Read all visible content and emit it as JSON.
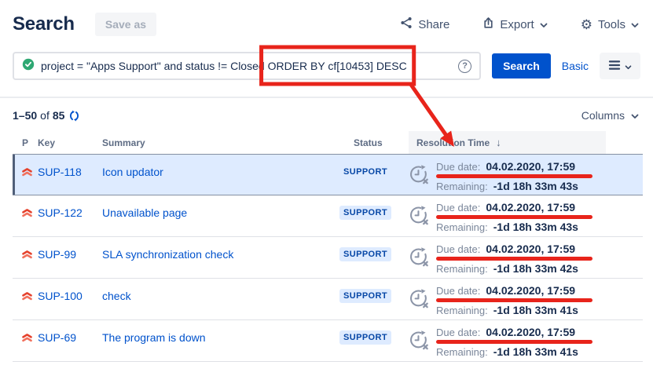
{
  "header": {
    "title": "Search",
    "save_as_label": "Save as",
    "share_label": "Share",
    "export_label": "Export",
    "tools_label": "Tools"
  },
  "search": {
    "query_plain": "project = \"Apps Support\" and status != Closed ",
    "query_orderby": "ORDER BY cf[10453] DESC",
    "button_label": "Search",
    "basic_label": "Basic"
  },
  "results": {
    "pagination": {
      "range": "1–50",
      "of_label": "of",
      "total": "85"
    },
    "columns_label": "Columns",
    "table": {
      "headers": {
        "p": "P",
        "key": "Key",
        "summary": "Summary",
        "status": "Status",
        "resolution": "Resolution Time"
      },
      "due_label": "Due date:",
      "remaining_label": "Remaining:",
      "rows": [
        {
          "key": "SUP-118",
          "summary": "Icon updator",
          "status": "SUPPORT",
          "priority": "Highest",
          "due": "04.02.2020, 17:59",
          "remaining": "-1d 18h 33m 43s",
          "selected": true
        },
        {
          "key": "SUP-122",
          "summary": "Unavailable page",
          "status": "SUPPORT",
          "priority": "Highest",
          "due": "04.02.2020, 17:59",
          "remaining": "-1d 18h 33m 43s",
          "selected": false
        },
        {
          "key": "SUP-99",
          "summary": "SLA synchronization check",
          "status": "SUPPORT",
          "priority": "Highest",
          "due": "04.02.2020, 17:59",
          "remaining": "-1d 18h 33m 42s",
          "selected": false
        },
        {
          "key": "SUP-100",
          "summary": "check",
          "status": "SUPPORT",
          "priority": "Highest",
          "due": "04.02.2020, 17:59",
          "remaining": "-1d 18h 33m 41s",
          "selected": false
        },
        {
          "key": "SUP-69",
          "summary": "The program is down",
          "status": "SUPPORT",
          "priority": "Highest",
          "due": "04.02.2020, 17:59",
          "remaining": "-1d 18h 33m 41s",
          "selected": false
        }
      ]
    }
  },
  "icons": {
    "gear": "⚙",
    "sort_desc": "↓",
    "question": "?"
  },
  "colors": {
    "accent_blue": "#0052CC",
    "link_blue": "#0052CC",
    "annotation_red": "#E8241B",
    "selected_row_bg": "#DEEBFF",
    "lozenge_bg": "#DEEBFF",
    "lozenge_text": "#0747A6",
    "heading_navy": "#172B4D"
  }
}
